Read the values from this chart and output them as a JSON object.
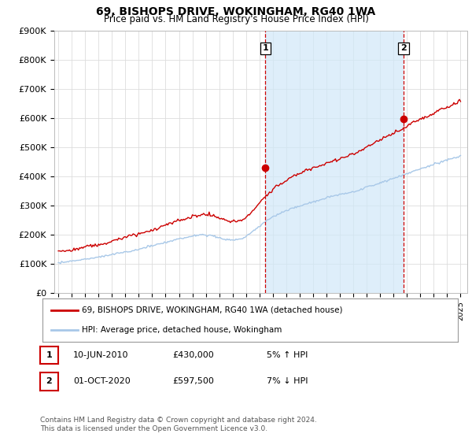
{
  "title": "69, BISHOPS DRIVE, WOKINGHAM, RG40 1WA",
  "subtitle": "Price paid vs. HM Land Registry's House Price Index (HPI)",
  "ylabel_ticks": [
    "£0",
    "£100K",
    "£200K",
    "£300K",
    "£400K",
    "£500K",
    "£600K",
    "£700K",
    "£800K",
    "£900K"
  ],
  "ylim": [
    0,
    900000
  ],
  "yticks": [
    0,
    100000,
    200000,
    300000,
    400000,
    500000,
    600000,
    700000,
    800000,
    900000
  ],
  "hpi_color": "#a8c8e8",
  "price_color": "#cc0000",
  "fill_color": "#d0e8f8",
  "marker1_t": 2010.45,
  "marker2_t": 2020.75,
  "marker1_price": 430000,
  "marker2_price": 597500,
  "legend_entry1": "69, BISHOPS DRIVE, WOKINGHAM, RG40 1WA (detached house)",
  "legend_entry2": "HPI: Average price, detached house, Wokingham",
  "table_row1": [
    "1",
    "10-JUN-2010",
    "£430,000",
    "5% ↑ HPI"
  ],
  "table_row2": [
    "2",
    "01-OCT-2020",
    "£597,500",
    "7% ↓ HPI"
  ],
  "footnote": "Contains HM Land Registry data © Crown copyright and database right 2024.\nThis data is licensed under the Open Government Licence v3.0.",
  "background_color": "#ffffff",
  "grid_color": "#dddddd",
  "vline_color": "#cc0000",
  "xlim_start": 1994.7,
  "xlim_end": 2025.5
}
